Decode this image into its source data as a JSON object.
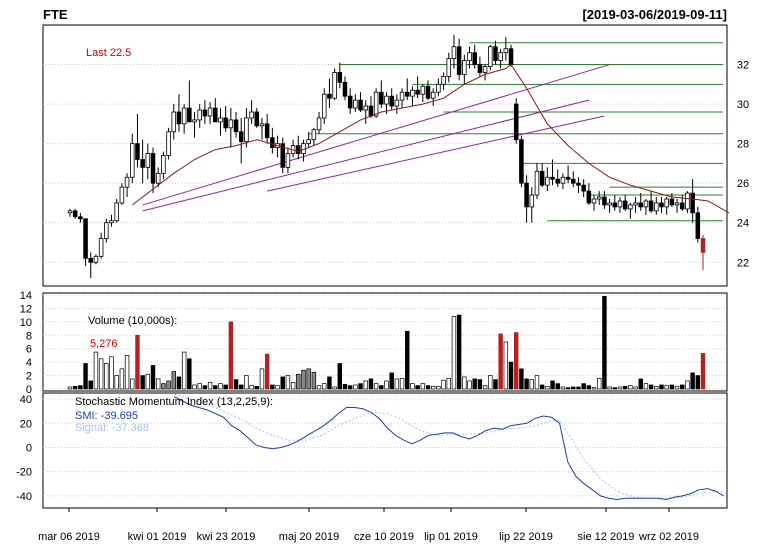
{
  "header": {
    "symbol": "FTE",
    "date_range": "[2019-03-06/2019-09-11]"
  },
  "price_panel": {
    "last_label": "Last 22.5",
    "ytick_labels": [
      "22",
      "24",
      "26",
      "28",
      "30",
      "32"
    ]
  },
  "volume_panel": {
    "title": "Volume (10,000s):",
    "last_value": "5,276",
    "ytick_labels": [
      "0",
      "2",
      "4",
      "6",
      "8",
      "10",
      "12",
      "14"
    ]
  },
  "smi_panel": {
    "title": "Stochastic Momentum Index (13,2,25,9):",
    "smi_label": "SMI: -39.695",
    "signal_label": "Signal: -37.368",
    "ytick_labels": [
      "-40",
      "-20",
      "0",
      "20",
      "40"
    ]
  },
  "x_axis": {
    "labels": [
      "mar 06 2019",
      "kwi 01 2019",
      "kwi 23 2019",
      "maj 20 2019",
      "cze 10 2019",
      "lip 01 2019",
      "lip 22 2019",
      "sie 12 2019",
      "wrz 02 2019"
    ]
  },
  "colors": {
    "up_candle": "#ffffff",
    "down_candle": "#000000",
    "last_candle": "#b22222",
    "ma_line": "#8b1a1a",
    "trendline": "#8b2a9b",
    "level_lines": "#2e7d32",
    "smi_line": "#1f3fa8",
    "signal_line": "#a9c4ec"
  },
  "chart_data": {
    "type": "candlestick",
    "ylim_price": [
      20.8,
      34.0
    ],
    "ylim_volume": [
      0,
      14
    ],
    "ylim_smi": [
      -50,
      45
    ],
    "candles": [
      [
        24.5,
        24.7,
        24.3,
        24.6,
        0.3
      ],
      [
        24.6,
        24.7,
        24.2,
        24.3,
        0.4
      ],
      [
        24.3,
        24.5,
        24.0,
        24.2,
        0.5
      ],
      [
        24.2,
        24.2,
        21.8,
        22.2,
        3.8
      ],
      [
        22.2,
        22.5,
        21.2,
        22.0,
        1.2
      ],
      [
        22.0,
        22.4,
        21.9,
        22.3,
        5.5
      ],
      [
        22.3,
        23.5,
        22.2,
        23.2,
        4.5
      ],
      [
        23.2,
        24.2,
        23.0,
        24.0,
        3.8
      ],
      [
        24.0,
        24.4,
        23.8,
        24.1,
        4.8
      ],
      [
        24.1,
        25.2,
        24.0,
        25.0,
        2.0
      ],
      [
        25.0,
        26.0,
        24.9,
        25.8,
        3.0
      ],
      [
        25.8,
        26.5,
        25.3,
        26.3,
        5.0
      ],
      [
        26.3,
        28.5,
        26.0,
        28.0,
        1.5
      ],
      [
        28.0,
        29.5,
        26.8,
        27.2,
        8.0
      ],
      [
        27.2,
        28.2,
        26.0,
        26.8,
        2.0
      ],
      [
        26.8,
        28.0,
        26.2,
        27.5,
        2.2
      ],
      [
        27.5,
        27.8,
        25.5,
        26.0,
        3.5
      ],
      [
        26.0,
        26.8,
        25.8,
        26.5,
        1.5
      ],
      [
        26.5,
        27.6,
        26.2,
        27.4,
        0.8
      ],
      [
        27.4,
        28.8,
        27.2,
        28.6,
        1.2
      ],
      [
        28.6,
        30.0,
        28.2,
        29.6,
        2.6
      ],
      [
        29.6,
        30.5,
        28.6,
        29.0,
        1.8
      ],
      [
        29.0,
        30.0,
        28.5,
        29.8,
        5.5
      ],
      [
        29.8,
        31.2,
        29.2,
        29.1,
        4.5
      ],
      [
        29.1,
        29.6,
        28.3,
        29.2,
        0.6
      ],
      [
        29.2,
        30.0,
        28.8,
        29.7,
        0.8
      ],
      [
        29.7,
        30.2,
        29.0,
        29.4,
        0.5
      ],
      [
        29.4,
        30.1,
        29.0,
        29.8,
        1.0
      ],
      [
        29.8,
        30.3,
        29.1,
        29.1,
        0.5
      ],
      [
        29.1,
        29.8,
        28.4,
        29.3,
        0.8
      ],
      [
        29.3,
        29.9,
        28.6,
        28.8,
        0.6
      ],
      [
        28.8,
        29.8,
        27.8,
        29.2,
        10.0
      ],
      [
        29.2,
        29.6,
        28.3,
        28.6,
        1.4
      ],
      [
        28.6,
        29.3,
        27.0,
        28.1,
        0.6
      ],
      [
        28.1,
        29.8,
        27.8,
        29.3,
        2.0
      ],
      [
        29.3,
        30.2,
        29.0,
        29.6,
        0.5
      ],
      [
        29.6,
        29.8,
        28.8,
        28.9,
        0.4
      ],
      [
        28.9,
        29.3,
        28.2,
        29.0,
        3.0
      ],
      [
        29.0,
        29.5,
        28.0,
        28.3,
        5.2
      ],
      [
        28.3,
        28.8,
        27.5,
        27.8,
        0.6
      ],
      [
        27.8,
        28.4,
        27.3,
        28.0,
        0.5
      ],
      [
        28.0,
        28.3,
        26.5,
        26.8,
        1.8
      ],
      [
        26.8,
        27.8,
        26.5,
        27.5,
        2.0
      ],
      [
        27.5,
        28.2,
        27.3,
        27.9,
        1.0
      ],
      [
        27.9,
        28.4,
        27.2,
        27.5,
        2.2
      ],
      [
        27.5,
        28.2,
        27.1,
        28.0,
        2.8
      ],
      [
        28.0,
        28.6,
        27.8,
        28.2,
        3.0
      ],
      [
        28.2,
        28.8,
        27.9,
        28.7,
        2.5
      ],
      [
        28.7,
        29.6,
        28.5,
        29.3,
        0.5
      ],
      [
        29.3,
        30.8,
        29.0,
        30.5,
        0.8
      ],
      [
        30.5,
        31.3,
        29.8,
        30.3,
        1.8
      ],
      [
        30.3,
        31.8,
        30.2,
        31.6,
        0.3
      ],
      [
        31.6,
        32.1,
        30.8,
        31.1,
        3.8
      ],
      [
        31.1,
        31.4,
        30.2,
        30.4,
        0.7
      ],
      [
        30.4,
        30.8,
        29.5,
        29.8,
        0.5
      ],
      [
        29.8,
        30.5,
        29.6,
        30.2,
        0.6
      ],
      [
        30.2,
        30.6,
        29.6,
        29.7,
        0.8
      ],
      [
        29.7,
        30.2,
        29.0,
        29.9,
        1.2
      ],
      [
        29.9,
        30.4,
        29.3,
        29.4,
        1.5
      ],
      [
        29.4,
        30.8,
        29.3,
        30.6,
        0.8
      ],
      [
        30.6,
        31.2,
        29.8,
        30.0,
        0.5
      ],
      [
        30.0,
        30.6,
        29.5,
        30.4,
        1.2
      ],
      [
        30.4,
        30.8,
        29.7,
        29.9,
        2.4
      ],
      [
        29.9,
        30.5,
        29.5,
        30.2,
        1.5
      ],
      [
        30.2,
        30.8,
        29.8,
        30.6,
        1.6
      ],
      [
        30.6,
        31.3,
        30.2,
        30.4,
        8.6
      ],
      [
        30.4,
        30.9,
        29.9,
        30.7,
        0.8
      ],
      [
        30.7,
        31.4,
        30.3,
        30.5,
        0.5
      ],
      [
        30.5,
        31.0,
        30.1,
        30.9,
        0.8
      ],
      [
        30.9,
        31.2,
        30.2,
        30.3,
        0.5
      ],
      [
        30.3,
        30.8,
        29.9,
        30.6,
        0.4
      ],
      [
        30.6,
        31.3,
        30.4,
        31.0,
        0.4
      ],
      [
        31.0,
        31.6,
        30.7,
        31.4,
        1.3
      ],
      [
        31.4,
        32.6,
        31.1,
        32.3,
        1.6
      ],
      [
        32.3,
        33.5,
        31.8,
        32.9,
        10.8
      ],
      [
        32.9,
        33.3,
        31.2,
        31.5,
        11.0
      ],
      [
        31.5,
        32.5,
        31.0,
        32.2,
        1.8
      ],
      [
        32.2,
        32.9,
        31.8,
        32.6,
        1.2
      ],
      [
        32.6,
        33.0,
        31.8,
        32.0,
        1.5
      ],
      [
        32.0,
        32.4,
        31.4,
        31.6,
        1.4
      ],
      [
        31.6,
        32.0,
        31.2,
        31.9,
        0.5
      ],
      [
        31.9,
        33.0,
        31.7,
        32.9,
        2.0
      ],
      [
        32.9,
        33.2,
        32.0,
        32.2,
        1.4
      ],
      [
        32.2,
        32.8,
        31.8,
        32.6,
        8.2
      ],
      [
        32.6,
        33.4,
        32.2,
        32.8,
        7.0
      ],
      [
        32.8,
        33.0,
        31.9,
        32.0,
        4.0
      ],
      [
        30.0,
        30.3,
        28.0,
        28.2,
        8.4
      ],
      [
        28.2,
        28.4,
        25.8,
        26.0,
        3.0
      ],
      [
        26.0,
        26.4,
        24.0,
        24.8,
        1.5
      ],
      [
        24.8,
        25.8,
        24.0,
        25.4,
        1.4
      ],
      [
        25.4,
        27.0,
        25.2,
        26.6,
        2.0
      ],
      [
        26.6,
        27.0,
        25.8,
        25.9,
        0.6
      ],
      [
        25.9,
        26.8,
        25.6,
        26.3,
        0.4
      ],
      [
        26.3,
        27.2,
        25.9,
        26.2,
        1.2
      ],
      [
        26.2,
        26.7,
        25.8,
        26.0,
        0.8
      ],
      [
        26.0,
        26.5,
        25.7,
        26.3,
        0.3
      ],
      [
        26.3,
        26.9,
        26.0,
        26.2,
        0.2
      ],
      [
        26.2,
        26.6,
        25.8,
        26.0,
        0.3
      ],
      [
        26.0,
        26.3,
        25.5,
        25.9,
        0.3
      ],
      [
        25.9,
        26.2,
        25.3,
        25.6,
        0.8
      ],
      [
        25.6,
        26.0,
        24.9,
        25.0,
        0.5
      ],
      [
        25.0,
        25.4,
        24.6,
        25.2,
        0.2
      ],
      [
        25.2,
        25.6,
        24.9,
        25.3,
        1.6
      ],
      [
        25.3,
        25.6,
        24.7,
        24.9,
        13.8
      ],
      [
        24.9,
        25.2,
        24.5,
        25.0,
        0.3
      ],
      [
        25.0,
        25.4,
        24.6,
        24.8,
        0.2
      ],
      [
        24.8,
        25.3,
        24.5,
        25.1,
        0.3
      ],
      [
        25.1,
        25.4,
        24.6,
        24.7,
        0.4
      ],
      [
        24.7,
        25.0,
        24.2,
        24.9,
        0.5
      ],
      [
        24.9,
        25.3,
        24.5,
        25.0,
        0.3
      ],
      [
        25.0,
        25.5,
        24.6,
        24.8,
        1.5
      ],
      [
        24.8,
        25.2,
        24.4,
        25.1,
        0.8
      ],
      [
        25.1,
        25.6,
        24.5,
        24.6,
        0.6
      ],
      [
        24.6,
        25.3,
        24.4,
        25.0,
        0.4
      ],
      [
        25.0,
        25.3,
        24.5,
        24.8,
        0.6
      ],
      [
        24.8,
        25.3,
        24.4,
        25.2,
        0.5
      ],
      [
        25.2,
        25.5,
        24.8,
        24.9,
        0.6
      ],
      [
        24.9,
        25.2,
        24.5,
        25.0,
        0.4
      ],
      [
        25.0,
        25.4,
        24.6,
        24.7,
        0.6
      ],
      [
        24.7,
        25.6,
        24.5,
        25.5,
        1.2
      ],
      [
        25.5,
        26.2,
        24.0,
        24.5,
        2.4
      ],
      [
        24.5,
        24.8,
        23.0,
        23.2,
        2.0
      ],
      [
        23.2,
        23.4,
        21.6,
        22.5,
        5.3
      ]
    ],
    "ma": [
      [
        12,
        24.9
      ],
      [
        16,
        25.7
      ],
      [
        20,
        26.5
      ],
      [
        24,
        27.2
      ],
      [
        28,
        27.7
      ],
      [
        32,
        27.9
      ],
      [
        36,
        28.2
      ],
      [
        40,
        27.9
      ],
      [
        44,
        27.6
      ],
      [
        48,
        28.0
      ],
      [
        52,
        28.6
      ],
      [
        56,
        29.2
      ],
      [
        60,
        29.6
      ],
      [
        64,
        29.8
      ],
      [
        68,
        30.0
      ],
      [
        72,
        30.3
      ],
      [
        76,
        31.0
      ],
      [
        80,
        31.5
      ],
      [
        84,
        31.8
      ],
      [
        85,
        32.0
      ],
      [
        88,
        30.8
      ],
      [
        92,
        29.0
      ],
      [
        96,
        27.9
      ],
      [
        100,
        27.0
      ],
      [
        104,
        26.3
      ],
      [
        108,
        25.9
      ],
      [
        112,
        25.6
      ],
      [
        116,
        25.3
      ],
      [
        120,
        25.2
      ],
      [
        123,
        25.1
      ],
      [
        127,
        24.5
      ]
    ],
    "trendlines": [
      [
        [
          14,
          24.9
        ],
        [
          104,
          32.0
        ]
      ],
      [
        [
          14,
          24.6
        ],
        [
          100,
          30.2
        ]
      ],
      [
        [
          38,
          25.6
        ],
        [
          103,
          29.4
        ]
      ]
    ],
    "levels": [
      [
        [
          77,
          33.1
        ],
        [
          128,
          33.1
        ]
      ],
      [
        [
          52,
          32.0
        ],
        [
          128,
          32.0
        ]
      ],
      [
        [
          66,
          31.0
        ],
        [
          128,
          31.0
        ]
      ],
      [
        [
          72,
          29.6
        ],
        [
          128,
          29.6
        ]
      ],
      [
        [
          46,
          28.5
        ],
        [
          128,
          28.5
        ]
      ],
      [
        [
          87,
          27.0
        ],
        [
          128,
          27.0
        ]
      ],
      [
        [
          104,
          25.8
        ],
        [
          128,
          25.8
        ]
      ],
      [
        [
          100,
          25.4
        ],
        [
          128,
          25.4
        ]
      ],
      [
        [
          92,
          24.1
        ],
        [
          128,
          24.1
        ]
      ]
    ],
    "smi_series": [
      [
        32,
        42
      ],
      [
        36,
        35
      ],
      [
        40,
        31
      ],
      [
        44,
        25
      ],
      [
        46,
        18
      ],
      [
        48,
        14
      ],
      [
        50,
        8
      ],
      [
        52,
        2
      ],
      [
        54,
        0
      ],
      [
        56,
        -1
      ],
      [
        58,
        0
      ],
      [
        60,
        2
      ],
      [
        62,
        5
      ],
      [
        64,
        9
      ],
      [
        66,
        13
      ],
      [
        68,
        17
      ],
      [
        70,
        22
      ],
      [
        72,
        28
      ],
      [
        74,
        33
      ],
      [
        76,
        33
      ],
      [
        78,
        32
      ],
      [
        80,
        29
      ],
      [
        82,
        24
      ],
      [
        84,
        16
      ],
      [
        86,
        10
      ],
      [
        88,
        6
      ],
      [
        90,
        3
      ],
      [
        92,
        6
      ],
      [
        94,
        10
      ],
      [
        96,
        11
      ],
      [
        98,
        12
      ],
      [
        100,
        12
      ],
      [
        102,
        9
      ],
      [
        104,
        7
      ],
      [
        106,
        10
      ],
      [
        108,
        14
      ],
      [
        110,
        16
      ],
      [
        112,
        15
      ],
      [
        114,
        18
      ],
      [
        116,
        19
      ],
      [
        118,
        20
      ],
      [
        120,
        24
      ],
      [
        122,
        26
      ],
      [
        124,
        25
      ],
      [
        126,
        20
      ],
      [
        128,
        -12
      ],
      [
        130,
        -24
      ],
      [
        132,
        -30
      ],
      [
        134,
        -35
      ],
      [
        136,
        -40
      ],
      [
        138,
        -42
      ],
      [
        140,
        -43
      ],
      [
        142,
        -42
      ],
      [
        144,
        -42
      ],
      [
        146,
        -42
      ],
      [
        148,
        -42
      ],
      [
        150,
        -42
      ],
      [
        152,
        -43
      ],
      [
        154,
        -41
      ],
      [
        156,
        -40
      ],
      [
        158,
        -38
      ],
      [
        160,
        -35
      ],
      [
        162,
        -34
      ],
      [
        164,
        -36
      ],
      [
        166,
        -40
      ]
    ],
    "signal_series": [
      [
        32,
        44
      ],
      [
        36,
        40
      ],
      [
        40,
        36
      ],
      [
        44,
        30
      ],
      [
        48,
        24
      ],
      [
        52,
        16
      ],
      [
        56,
        10
      ],
      [
        60,
        6
      ],
      [
        64,
        6
      ],
      [
        68,
        10
      ],
      [
        72,
        18
      ],
      [
        76,
        24
      ],
      [
        80,
        29
      ],
      [
        84,
        28
      ],
      [
        88,
        22
      ],
      [
        92,
        14
      ],
      [
        96,
        10
      ],
      [
        100,
        11
      ],
      [
        104,
        11
      ],
      [
        108,
        12
      ],
      [
        112,
        15
      ],
      [
        116,
        16
      ],
      [
        120,
        18
      ],
      [
        124,
        22
      ],
      [
        126,
        22
      ],
      [
        128,
        12
      ],
      [
        132,
        -10
      ],
      [
        136,
        -26
      ],
      [
        140,
        -36
      ],
      [
        144,
        -41
      ],
      [
        148,
        -42
      ],
      [
        152,
        -42
      ],
      [
        156,
        -41
      ],
      [
        160,
        -38
      ],
      [
        164,
        -36
      ],
      [
        166,
        -37
      ]
    ]
  }
}
